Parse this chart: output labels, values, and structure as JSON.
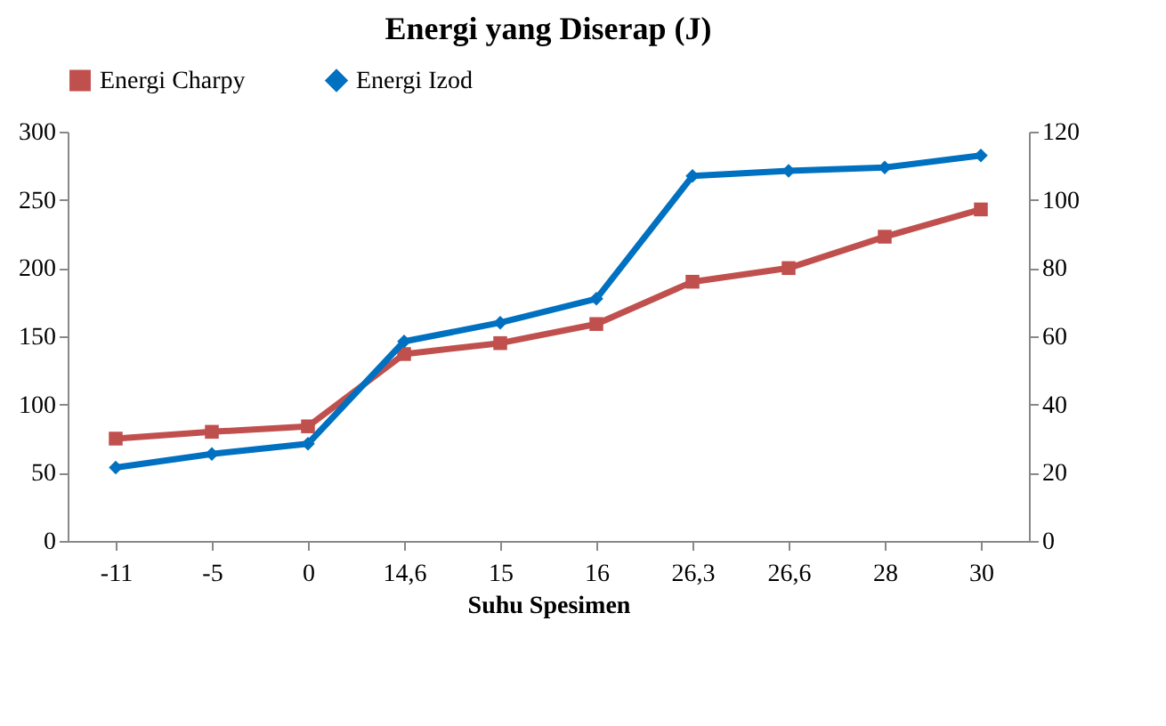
{
  "chart_data": {
    "type": "line",
    "title": "Energi yang Diserap (J)",
    "xlabel": "Suhu Spesimen",
    "categories": [
      "-11",
      "-5",
      "0",
      "14,6",
      "15",
      "16",
      "26,3",
      "26,6",
      "28",
      "30"
    ],
    "series": [
      {
        "name": "Energi Charpy",
        "color": "#c0504d",
        "marker": "square",
        "values": [
          75,
          80,
          84,
          137,
          145,
          159,
          190,
          200,
          223,
          243
        ]
      },
      {
        "name": "Energi Izod",
        "color": "#0070c0",
        "marker": "diamond",
        "axis": "y2",
        "values": [
          21.5,
          25.5,
          28.5,
          58.5,
          64,
          71,
          107,
          108.5,
          109.5,
          113
        ]
      }
    ],
    "ylim": [
      0,
      300
    ],
    "yticks": [
      0,
      50,
      100,
      150,
      200,
      250,
      300
    ],
    "y2lim": [
      0,
      120
    ],
    "y2ticks": [
      0,
      20,
      40,
      60,
      80,
      100,
      120
    ],
    "legend": "top",
    "grid": false
  }
}
